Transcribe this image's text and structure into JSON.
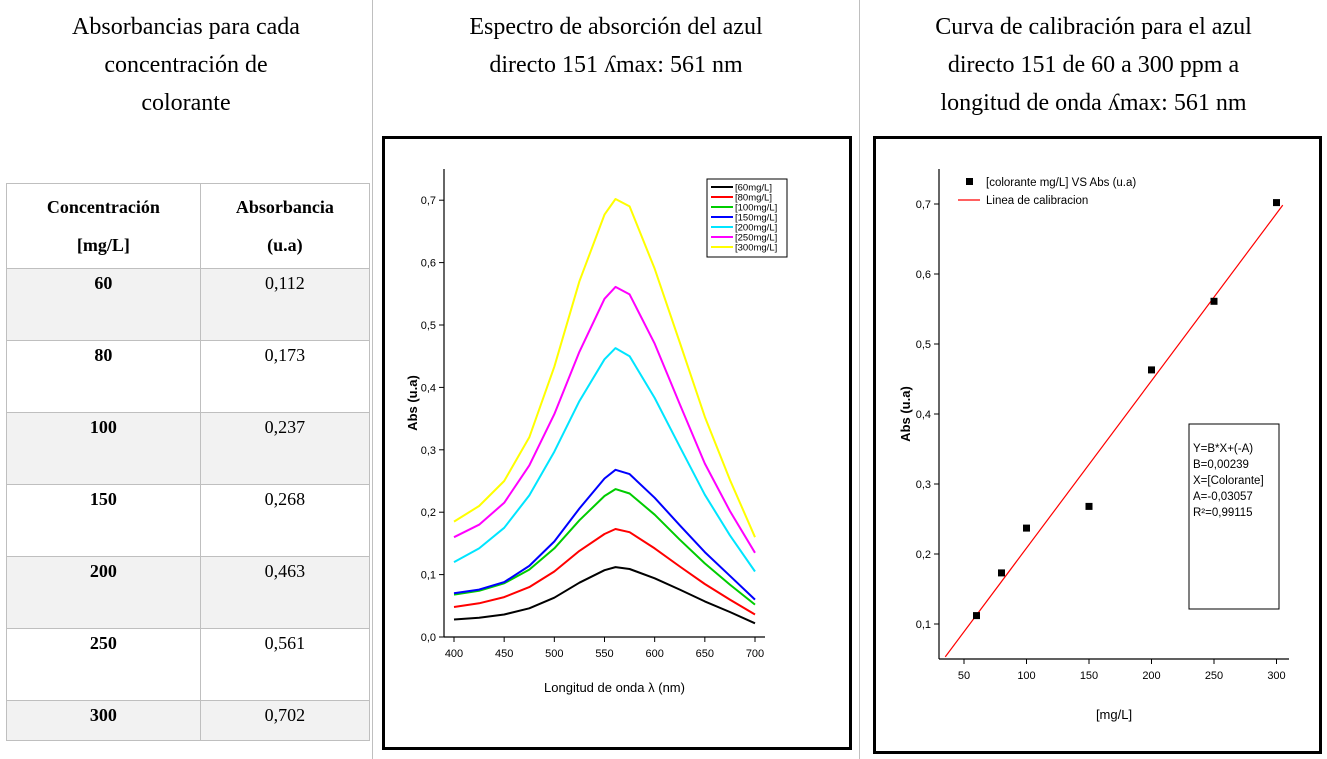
{
  "col1": {
    "heading": [
      "Absorbancias para cada",
      "concentración de",
      "colorante"
    ],
    "table": {
      "headers": [
        [
          "Concentración",
          "[mg/L]"
        ],
        [
          "Absorbancia",
          "(u.a)"
        ]
      ],
      "rows": [
        {
          "conc": "60",
          "abs": "0,112"
        },
        {
          "conc": "80",
          "abs": "0,173"
        },
        {
          "conc": "100",
          "abs": "0,237"
        },
        {
          "conc": "150",
          "abs": "0,268"
        },
        {
          "conc": "200",
          "abs": "0,463"
        },
        {
          "conc": "250",
          "abs": "0,561"
        },
        {
          "conc": "300",
          "abs": "0,702"
        }
      ]
    }
  },
  "col2": {
    "heading": [
      "Espectro de absorción del azul",
      "directo 151 ʎmax: 561 nm"
    ]
  },
  "col3": {
    "heading": [
      "Curva de calibración para el azul",
      "directo 151 de 60 a 300 ppm a",
      "longitud de onda ʎmax: 561 nm"
    ]
  },
  "chart_data": [
    {
      "type": "line",
      "xlabel": "Longitud de onda λ (nm)",
      "ylabel": "Abs (u.a)",
      "xlim": [
        400,
        700
      ],
      "ylim": [
        0,
        0.75
      ],
      "x_ticks": [
        "400",
        "450",
        "500",
        "550",
        "600",
        "650",
        "700"
      ],
      "y_ticks": [
        "0,0",
        "0,1",
        "0,2",
        "0,3",
        "0,4",
        "0,5",
        "0,6",
        "0,7"
      ],
      "legend_position": "top-right",
      "x": [
        400,
        425,
        450,
        475,
        500,
        525,
        550,
        561,
        575,
        600,
        625,
        650,
        675,
        700
      ],
      "series": [
        {
          "name": "[60mg/L]",
          "color": "#000000",
          "values": [
            0.028,
            0.031,
            0.036,
            0.046,
            0.063,
            0.087,
            0.107,
            0.112,
            0.109,
            0.094,
            0.076,
            0.057,
            0.04,
            0.022
          ]
        },
        {
          "name": "[80mg/L]",
          "color": "#ff0000",
          "values": [
            0.048,
            0.054,
            0.064,
            0.08,
            0.105,
            0.138,
            0.165,
            0.173,
            0.168,
            0.142,
            0.113,
            0.085,
            0.06,
            0.036
          ]
        },
        {
          "name": "[100mg/L]",
          "color": "#00cc00",
          "values": [
            0.068,
            0.074,
            0.086,
            0.108,
            0.142,
            0.187,
            0.226,
            0.237,
            0.23,
            0.196,
            0.156,
            0.118,
            0.084,
            0.052
          ]
        },
        {
          "name": "[150mg/L]",
          "color": "#0000ff",
          "values": [
            0.07,
            0.076,
            0.088,
            0.114,
            0.153,
            0.206,
            0.254,
            0.268,
            0.261,
            0.223,
            0.179,
            0.136,
            0.098,
            0.06
          ]
        },
        {
          "name": "[200mg/L]",
          "color": "#00e5ff",
          "values": [
            0.12,
            0.142,
            0.175,
            0.227,
            0.297,
            0.378,
            0.445,
            0.463,
            0.45,
            0.383,
            0.305,
            0.228,
            0.163,
            0.105
          ]
        },
        {
          "name": "[250mg/L]",
          "color": "#ff00ff",
          "values": [
            0.16,
            0.18,
            0.215,
            0.275,
            0.357,
            0.457,
            0.542,
            0.561,
            0.549,
            0.47,
            0.373,
            0.278,
            0.202,
            0.135
          ]
        },
        {
          "name": "[300mg/L]",
          "color": "#ffff00",
          "values": [
            0.185,
            0.21,
            0.25,
            0.32,
            0.433,
            0.57,
            0.677,
            0.702,
            0.69,
            0.59,
            0.472,
            0.353,
            0.252,
            0.16
          ]
        }
      ]
    },
    {
      "type": "scatter",
      "xlabel": "[mg/L]",
      "ylabel": "Abs (u.a)",
      "xlim": [
        30,
        310
      ],
      "ylim": [
        0.05,
        0.75
      ],
      "x_ticks": [
        "50",
        "100",
        "150",
        "200",
        "250",
        "300"
      ],
      "y_ticks": [
        "0,1",
        "0,2",
        "0,3",
        "0,4",
        "0,5",
        "0,6",
        "0,7"
      ],
      "legend_position": "top-left",
      "series": [
        {
          "name": "[colorante mg/L] VS Abs (u.a)",
          "color": "#000000",
          "x": [
            60,
            80,
            100,
            150,
            200,
            250,
            300
          ],
          "values": [
            0.112,
            0.173,
            0.237,
            0.268,
            0.463,
            0.561,
            0.702
          ]
        },
        {
          "name": "Linea de calibracion",
          "color": "#ff0000",
          "type": "line",
          "slope": 0.00239,
          "intercept": -0.03057,
          "x_range": [
            35,
            305
          ]
        }
      ],
      "annotation": [
        "Y=B*X+(-A)",
        "B=0,00239",
        "X=[Colorante]",
        "A=-0,03057",
        "R²=0,99115"
      ]
    }
  ]
}
